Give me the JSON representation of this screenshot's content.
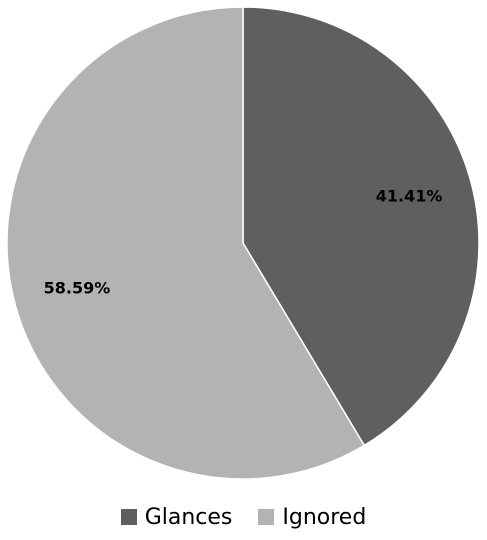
{
  "chart_data": {
    "type": "pie",
    "start_angle_deg": 0,
    "direction": "clockwise",
    "slices": [
      {
        "name": "Glances",
        "value": 41.41,
        "label": "41.41%",
        "color": "#5f5f5f"
      },
      {
        "name": "Ignored",
        "value": 58.59,
        "label": "58.59%",
        "color": "#b3b3b3"
      }
    ],
    "legend_position": "bottom"
  }
}
